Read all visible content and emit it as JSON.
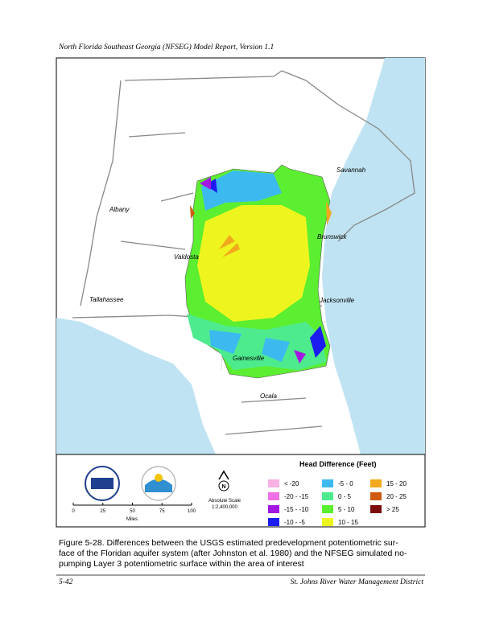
{
  "header": {
    "title": "North Florida Southeast Georgia (NFSEG) Model Report, Version 1.1"
  },
  "map": {
    "places": [
      "Savannah",
      "Albany",
      "Brunswick",
      "Valdosta",
      "Tallahassee",
      "Jacksonville",
      "Gainesville",
      "Ocala"
    ]
  },
  "scale_bar": {
    "ticks": [
      0,
      25,
      50,
      75,
      100
    ],
    "unit": "Miles",
    "scale_title": "Absolute Scale",
    "scale_ratio": "1:2,400,000"
  },
  "legend": {
    "title": "Head Difference (Feet)",
    "items": [
      {
        "label": "< -20",
        "color": "#f9b0e2"
      },
      {
        "label": "-20 - -15",
        "color": "#f070e6"
      },
      {
        "label": "-15 - -10",
        "color": "#a218e2"
      },
      {
        "label": "-10 - -5",
        "color": "#1c1cf0"
      },
      {
        "label": "-5 - 0",
        "color": "#3cbaf0"
      },
      {
        "label": "0 - 5",
        "color": "#4eeb8e"
      },
      {
        "label": "5 - 10",
        "color": "#5cee30"
      },
      {
        "label": "10 - 15",
        "color": "#eef51e"
      },
      {
        "label": "15 - 20",
        "color": "#f3a91e"
      },
      {
        "label": "20 - 25",
        "color": "#cf5a10"
      },
      {
        "label": "> 25",
        "color": "#7a0c0c"
      }
    ]
  },
  "caption": {
    "lines": [
      "Figure 5-28.    Differences between the USGS estimated predevelopment potentiometric sur-",
      "face of the Floridan aquifer system (after Johnston et al. 1980) and the NFSEG simulated no-",
      "pumping Layer 3 potentiometric surface within the area of interest"
    ]
  },
  "footer": {
    "page": "5-42",
    "organization": "St. Johns River Water Management District"
  }
}
